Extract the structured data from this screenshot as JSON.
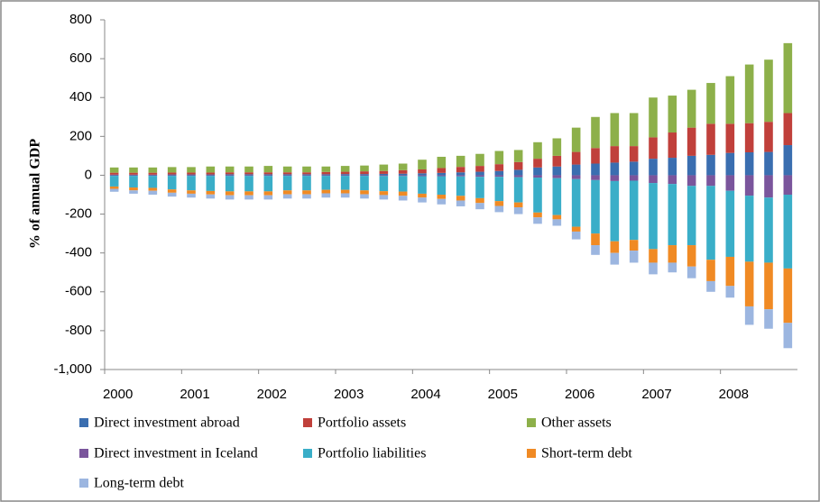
{
  "chart_data": {
    "type": "stacked_bar",
    "y_label": "% of annual GDP",
    "categories": [
      "2000",
      null,
      null,
      null,
      "2001",
      null,
      null,
      null,
      "2002",
      null,
      null,
      null,
      "2003",
      null,
      null,
      null,
      "2004",
      null,
      null,
      null,
      "2005",
      null,
      null,
      null,
      "2006",
      null,
      null,
      null,
      "2007",
      null,
      null,
      null,
      "2008",
      null,
      null,
      null
    ],
    "series": [
      {
        "name": "Direct investment abroad",
        "color": "#3a6eb0",
        "values": [
          3,
          3,
          3,
          4,
          4,
          4,
          5,
          5,
          5,
          5,
          5,
          5,
          6,
          6,
          7,
          8,
          10,
          12,
          15,
          18,
          22,
          28,
          40,
          45,
          55,
          60,
          65,
          70,
          85,
          90,
          100,
          105,
          115,
          118,
          120,
          155
        ]
      },
      {
        "name": "Portfolio assets",
        "color": "#c0403b",
        "values": [
          10,
          10,
          10,
          10,
          10,
          10,
          10,
          10,
          10,
          10,
          10,
          12,
          12,
          14,
          15,
          18,
          20,
          25,
          28,
          30,
          35,
          40,
          45,
          55,
          65,
          80,
          85,
          80,
          110,
          130,
          145,
          160,
          150,
          150,
          155,
          165
        ]
      },
      {
        "name": "Other assets",
        "color": "#8db04a",
        "values": [
          27,
          27,
          27,
          28,
          28,
          31,
          30,
          30,
          33,
          30,
          30,
          28,
          30,
          30,
          33,
          34,
          50,
          58,
          57,
          62,
          68,
          62,
          85,
          90,
          125,
          160,
          170,
          170,
          205,
          190,
          195,
          210,
          245,
          302,
          320,
          360
        ]
      },
      {
        "name": "Direct investment in Iceland",
        "color": "#7a559c",
        "values": [
          -3,
          -3,
          -3,
          -3,
          -3,
          -3,
          -3,
          -3,
          -3,
          -3,
          -3,
          -3,
          -3,
          -3,
          -4,
          -4,
          -5,
          -5,
          -6,
          -8,
          -8,
          -10,
          -12,
          -15,
          -20,
          -25,
          -30,
          -28,
          -40,
          -45,
          -55,
          -55,
          -80,
          -105,
          -115,
          -100
        ]
      },
      {
        "name": "Portfolio liabilities",
        "color": "#3aaec8",
        "values": [
          -55,
          -60,
          -62,
          -70,
          -75,
          -78,
          -80,
          -80,
          -80,
          -75,
          -75,
          -72,
          -72,
          -75,
          -78,
          -80,
          -90,
          -95,
          -100,
          -110,
          -125,
          -130,
          -180,
          -190,
          -245,
          -275,
          -310,
          -305,
          -340,
          -315,
          -305,
          -380,
          -340,
          -340,
          -335,
          -380
        ]
      },
      {
        "name": "Short-term debt",
        "color": "#f08a24",
        "values": [
          -12,
          -15,
          -15,
          -17,
          -17,
          -18,
          -20,
          -20,
          -20,
          -20,
          -20,
          -18,
          -18,
          -20,
          -20,
          -22,
          -20,
          -22,
          -24,
          -25,
          -25,
          -25,
          -25,
          -22,
          -25,
          -60,
          -60,
          -55,
          -70,
          -90,
          -110,
          -110,
          -150,
          -230,
          -240,
          -280
        ]
      },
      {
        "name": "Long-term debt",
        "color": "#9cb6e0",
        "values": [
          -15,
          -17,
          -20,
          -20,
          -20,
          -21,
          -22,
          -22,
          -22,
          -22,
          -22,
          -22,
          -22,
          -22,
          -23,
          -24,
          -25,
          -28,
          -30,
          -32,
          -32,
          -35,
          -33,
          -33,
          -40,
          -50,
          -60,
          -62,
          -60,
          -50,
          -60,
          -55,
          -60,
          -95,
          -100,
          -130
        ]
      }
    ],
    "ylim": [
      -1000,
      800
    ],
    "yticks": [
      {
        "value": -1000,
        "label": "-1,000"
      },
      -800,
      -600,
      -400,
      -200,
      0,
      200,
      400,
      600,
      800
    ],
    "legend": "bottom"
  }
}
